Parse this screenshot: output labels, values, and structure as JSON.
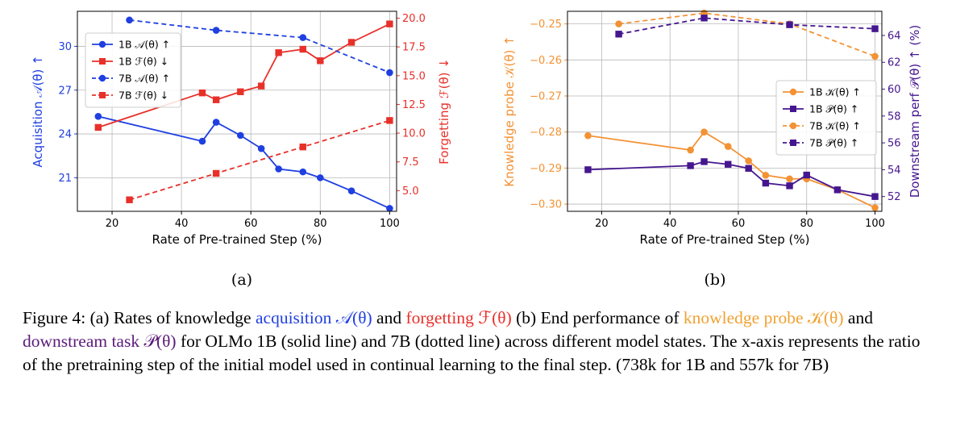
{
  "chart_data": [
    {
      "type": "line",
      "panel_label": "(a)",
      "xlabel": "Rate of Pre-trained Step (%)",
      "ylabel": "Acquisition 𝒜(θ) ↑",
      "ylabel2": "Forgetting ℱ(θ) ↓",
      "xlim": [
        10,
        102
      ],
      "ylim": [
        18.7,
        32.4
      ],
      "ylim2": [
        3.2,
        20.6
      ],
      "xticks": [
        "20",
        "40",
        "60",
        "80",
        "100"
      ],
      "xtick_values": [
        20,
        40,
        60,
        80,
        100
      ],
      "yticks": [
        "21",
        "24",
        "27",
        "30"
      ],
      "ytick_values": [
        21,
        24,
        27,
        30
      ],
      "yticks2": [
        "5.0",
        "7.5",
        "10.0",
        "12.5",
        "15.0",
        "17.5",
        "20.0"
      ],
      "ytick_values2": [
        5,
        7.5,
        10,
        12.5,
        15,
        17.5,
        20
      ],
      "grid": true,
      "legend_position": "upper-left",
      "series": [
        {
          "name": "1B 𝒜(θ) ↑",
          "axis": "left",
          "color": "#1f3fe0",
          "style": "solid",
          "marker": "circle",
          "x": [
            16,
            46,
            50,
            57,
            63,
            68,
            75,
            80,
            89,
            100
          ],
          "y": [
            25.2,
            23.5,
            24.8,
            23.9,
            23.0,
            21.6,
            21.4,
            21.0,
            20.1,
            18.9
          ]
        },
        {
          "name": "1B ℱ(θ) ↓",
          "axis": "right",
          "color": "#e8302a",
          "style": "solid",
          "marker": "square",
          "x": [
            16,
            46,
            50,
            57,
            63,
            68,
            75,
            80,
            89,
            100
          ],
          "y": [
            10.5,
            13.5,
            12.9,
            13.6,
            14.1,
            17.0,
            17.3,
            16.3,
            17.9,
            19.5
          ]
        },
        {
          "name": "7B 𝒜(θ) ↑",
          "axis": "left",
          "color": "#1f3fe0",
          "style": "dashed",
          "marker": "circle",
          "x": [
            25,
            50,
            75,
            100
          ],
          "y": [
            31.8,
            31.1,
            30.6,
            28.2
          ]
        },
        {
          "name": "7B ℱ(θ) ↓",
          "axis": "right",
          "color": "#e8302a",
          "style": "dashed",
          "marker": "square",
          "x": [
            25,
            50,
            75,
            100
          ],
          "y": [
            4.2,
            6.5,
            8.8,
            11.1
          ]
        }
      ]
    },
    {
      "type": "line",
      "panel_label": "(b)",
      "xlabel": "Rate of Pre-trained Step (%)",
      "ylabel": "Knowledge probe 𝒦(θ) ↑",
      "ylabel2": "Downstream perf 𝒫(θ) ↑ (%)",
      "xlim": [
        10,
        102
      ],
      "ylim": [
        -0.302,
        -0.2465
      ],
      "ylim2": [
        50.9,
        65.8
      ],
      "xticks": [
        "20",
        "40",
        "60",
        "80",
        "100"
      ],
      "xtick_values": [
        20,
        40,
        60,
        80,
        100
      ],
      "yticks": [
        "−0.30",
        "−0.29",
        "−0.28",
        "−0.27",
        "−0.26",
        "−0.25"
      ],
      "ytick_values": [
        -0.3,
        -0.29,
        -0.28,
        -0.27,
        -0.26,
        -0.25
      ],
      "yticks2": [
        "52",
        "54",
        "56",
        "58",
        "60",
        "62",
        "64"
      ],
      "ytick_values2": [
        52,
        54,
        56,
        58,
        60,
        62,
        64
      ],
      "grid": true,
      "legend_position": "center-right",
      "series": [
        {
          "name": "1B 𝒦(θ) ↑",
          "axis": "left",
          "color": "#f39234",
          "style": "solid",
          "marker": "circle",
          "x": [
            16,
            46,
            50,
            57,
            63,
            68,
            75,
            80,
            89,
            100
          ],
          "y": [
            -0.281,
            -0.285,
            -0.28,
            -0.284,
            -0.288,
            -0.292,
            -0.293,
            -0.293,
            -0.296,
            -0.301
          ]
        },
        {
          "name": "1B 𝒫(θ) ↑",
          "axis": "right",
          "color": "#45168f",
          "style": "solid",
          "marker": "square",
          "x": [
            16,
            46,
            50,
            57,
            63,
            68,
            75,
            80,
            89,
            100
          ],
          "y": [
            54.0,
            54.3,
            54.6,
            54.4,
            54.1,
            53.0,
            52.8,
            53.6,
            52.5,
            52.0
          ]
        },
        {
          "name": "7B 𝒦(θ) ↑",
          "axis": "left",
          "color": "#f39234",
          "style": "dashed",
          "marker": "circle",
          "x": [
            25,
            50,
            75,
            100
          ],
          "y": [
            -0.25,
            -0.247,
            -0.25,
            -0.259
          ]
        },
        {
          "name": "7B 𝒫(θ) ↑",
          "axis": "right",
          "color": "#45168f",
          "style": "dashed",
          "marker": "square",
          "x": [
            25,
            50,
            75,
            100
          ],
          "y": [
            64.1,
            65.3,
            64.8,
            64.5
          ]
        }
      ]
    }
  ],
  "caption": {
    "prefix": "Figure 4: (a) Rates of knowledge ",
    "acq": "acquisition 𝒜(θ)",
    "and1": " and ",
    "forg": "forgetting ℱ(θ)",
    "mid1": " (b) End performance of ",
    "kprobe": "knowledge probe 𝒦(θ)",
    "and2": " and ",
    "down": "downstream task 𝒫(θ)",
    "rest": " for OLMo 1B (solid line) and 7B (dotted line) across different model states. The x-axis represents the ratio of the pretraining step of the initial model used in continual learning to the final step. (738k for 1B and 557k for 7B)"
  },
  "caption_colors": {
    "acq": "#1f3fe0",
    "forg": "#e8302a",
    "kprobe": "#f0a232",
    "down": "#5b1a7a"
  }
}
